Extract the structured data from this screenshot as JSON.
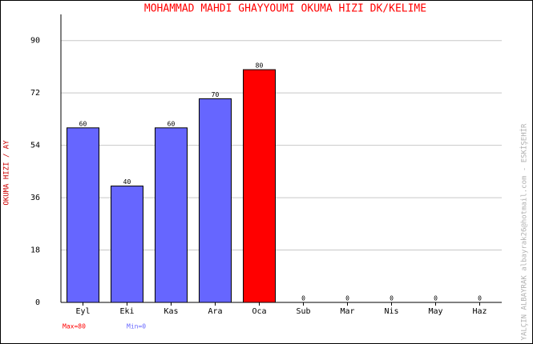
{
  "chart_data": {
    "type": "bar",
    "title": "MOHAMMAD MAHDI GHAYYOUMI   OKUMA HIZI  DK/KELIME",
    "y_label": "OKUMA HIZI / AY",
    "categories": [
      "Eyl",
      "Eki",
      "Kas",
      "Ara",
      "Oca",
      "Sub",
      "Mar",
      "Nis",
      "May",
      "Haz"
    ],
    "values": [
      60,
      40,
      60,
      70,
      80,
      0,
      0,
      0,
      0,
      0
    ],
    "colors": [
      "#6666ff",
      "#6666ff",
      "#6666ff",
      "#6666ff",
      "#ff0000",
      "#6666ff",
      "#6666ff",
      "#6666ff",
      "#6666ff",
      "#6666ff"
    ],
    "ylim": [
      0,
      99
    ],
    "yticks": [
      0,
      18,
      36,
      54,
      72,
      90
    ],
    "grid": true,
    "max_label": "Max=80",
    "min_label": "Min=0",
    "credit": "YALÇIN ALBAYRAK   albayrak26@hotmail.com - ESKİŞEHİR"
  }
}
